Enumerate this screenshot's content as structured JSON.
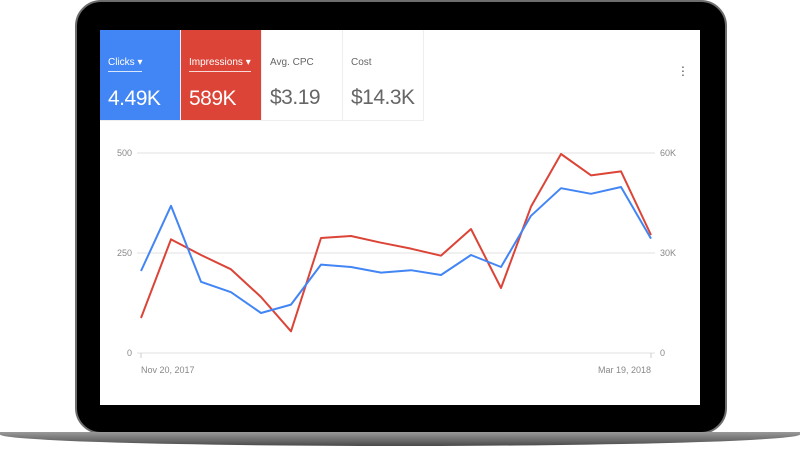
{
  "metrics": [
    {
      "label": "Clicks",
      "value": "4.49K",
      "dropdown": true,
      "color": "#4285f4"
    },
    {
      "label": "Impressions",
      "value": "589K",
      "dropdown": true,
      "color": "#db4437"
    },
    {
      "label": "Avg. CPC",
      "value": "$3.19"
    },
    {
      "label": "Cost",
      "value": "$14.3K"
    }
  ],
  "menu_icon": "more-vert-icon",
  "chart_data": {
    "type": "line",
    "x_tick_labels": [
      "Nov 20, 2017",
      "Mar 19, 2018"
    ],
    "left_axis": {
      "ticks": [
        "0",
        "250",
        "500"
      ],
      "ylim": [
        0,
        500
      ]
    },
    "right_axis": {
      "ticks": [
        "0",
        "30K",
        "60K"
      ],
      "ylim": [
        0,
        60000
      ]
    },
    "grid": true,
    "series": [
      {
        "name": "Clicks",
        "axis": "left",
        "color": "#4285f4",
        "values": [
          205,
          368,
          178,
          152,
          100,
          121,
          221,
          215,
          201,
          207,
          195,
          245,
          215,
          343,
          412,
          398,
          415,
          286
        ]
      },
      {
        "name": "Impressions",
        "axis": "right",
        "color": "#db4437",
        "values": [
          10500,
          34100,
          29400,
          25100,
          16800,
          6500,
          34500,
          35100,
          33100,
          31300,
          29200,
          37200,
          19500,
          43900,
          59700,
          53300,
          54500,
          35400
        ]
      }
    ]
  }
}
